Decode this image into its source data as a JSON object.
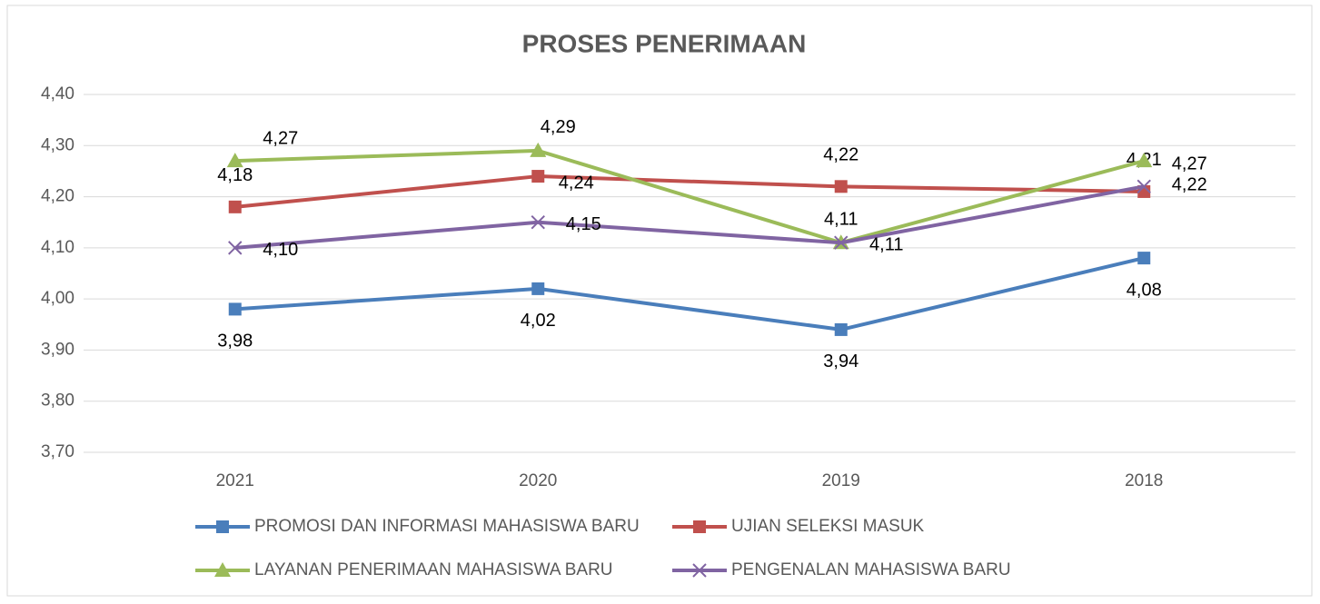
{
  "chart_data": {
    "type": "line",
    "title": "PROSES PENERIMAAN",
    "categories": [
      "2021",
      "2020",
      "2019",
      "2018"
    ],
    "series": [
      {
        "name": "PROMOSI DAN INFORMASI MAHASISWA BARU",
        "color": "#4a7ebb",
        "marker": "square",
        "values": [
          3.98,
          4.02,
          3.94,
          4.08
        ],
        "value_labels": [
          "3,98",
          "4,02",
          "3,94",
          "4,08"
        ]
      },
      {
        "name": "UJIAN SELEKSI MASUK",
        "color": "#c0504d",
        "marker": "square",
        "values": [
          4.18,
          4.24,
          4.22,
          4.21
        ],
        "value_labels": [
          "4,18",
          "4,24",
          "4,22",
          "4,21"
        ]
      },
      {
        "name": "LAYANAN PENERIMAAN MAHASISWA BARU",
        "color": "#9bbb59",
        "marker": "triangle",
        "values": [
          4.27,
          4.29,
          4.11,
          4.27
        ],
        "value_labels": [
          "4,27",
          "4,29",
          "4,11",
          "4,27"
        ]
      },
      {
        "name": "PENGENALAN MAHASISWA BARU",
        "color": "#8064a2",
        "marker": "x",
        "values": [
          4.1,
          4.15,
          4.11,
          4.22
        ],
        "value_labels": [
          "4,10",
          "4,15",
          "4,11",
          "4,22"
        ]
      }
    ],
    "ylim": [
      3.7,
      4.4
    ],
    "yticks": [
      {
        "value": 3.7,
        "label": "3,70"
      },
      {
        "value": 3.8,
        "label": "3,80"
      },
      {
        "value": 3.9,
        "label": "3,90"
      },
      {
        "value": 4.0,
        "label": "4,00"
      },
      {
        "value": 4.1,
        "label": "4,10"
      },
      {
        "value": 4.2,
        "label": "4,20"
      },
      {
        "value": 4.3,
        "label": "4,30"
      },
      {
        "value": 4.4,
        "label": "4,40"
      }
    ],
    "grid": true,
    "legend": "bottom"
  }
}
